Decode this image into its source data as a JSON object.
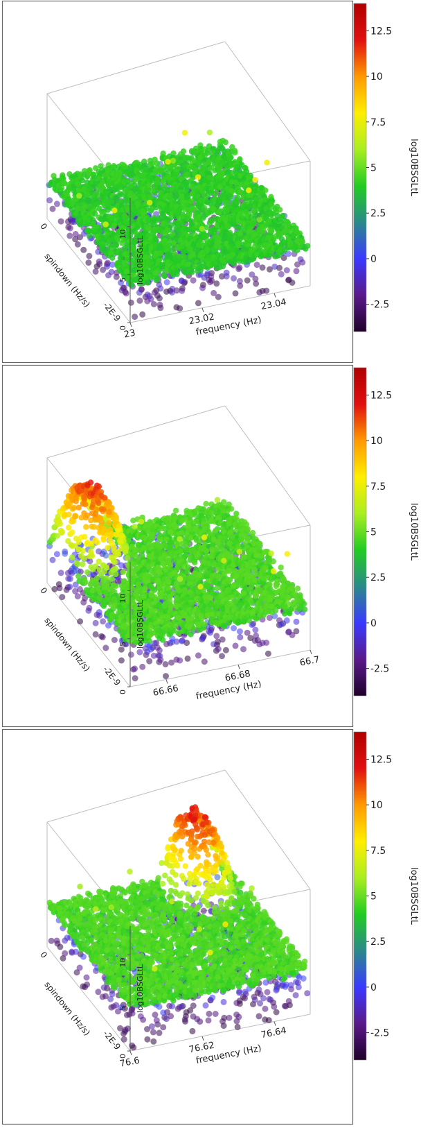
{
  "colorbar": {
    "label": "log10BSGLtL",
    "ticks": [
      "12.5",
      "10",
      "7.5",
      "5",
      "2.5",
      "0",
      "-2.5"
    ],
    "tick_values": [
      12.5,
      10,
      7.5,
      5,
      2.5,
      0,
      -2.5
    ],
    "range": [
      -4,
      14
    ],
    "colors": [
      "#20002a",
      "#5a1a8a",
      "#3a3aff",
      "#2a8a8a",
      "#22cc22",
      "#aaee22",
      "#ffee00",
      "#ff9900",
      "#e01010",
      "#b00000"
    ]
  },
  "chart_data": [
    {
      "type": "scatter",
      "projection": "3d",
      "xlabel": "frequency (Hz)",
      "ylabel": "spindown (Hz/s)",
      "zlabel": "log10BSGLtL",
      "x_ticks": [
        "23",
        "23.02",
        "23.04"
      ],
      "y_ticks": [
        "0",
        "-2E-9"
      ],
      "z_ticks": [
        "0",
        "5",
        "10"
      ],
      "xlim": [
        23.0,
        23.05
      ],
      "zlim": [
        0,
        13
      ],
      "background_level": 4,
      "peak": null
    },
    {
      "type": "scatter",
      "projection": "3d",
      "xlabel": "frequency (Hz)",
      "ylabel": "spindown (Hz/s)",
      "zlabel": "log10BSGLtL",
      "x_ticks": [
        "66.66",
        "66.68",
        "66.7"
      ],
      "y_ticks": [
        "0",
        "-2E-9"
      ],
      "z_ticks": [
        "0",
        "5",
        "10"
      ],
      "xlim": [
        66.65,
        66.7
      ],
      "zlim": [
        0,
        13
      ],
      "background_level": 4.5,
      "peak": {
        "max_value": 12,
        "location": "low-frequency, spindown near 0"
      }
    },
    {
      "type": "scatter",
      "projection": "3d",
      "xlabel": "frequency (Hz)",
      "ylabel": "spindown (Hz/s)",
      "zlabel": "log10BSGLtL",
      "x_ticks": [
        "76.6",
        "76.62",
        "76.64"
      ],
      "y_ticks": [
        "0",
        "-2E-9"
      ],
      "z_ticks": [
        "0",
        "5",
        "10"
      ],
      "xlim": [
        76.6,
        76.65
      ],
      "zlim": [
        0,
        13
      ],
      "background_level": 4.5,
      "peak": {
        "max_value": 12.5,
        "location": "high-frequency, spindown near 0"
      }
    }
  ]
}
